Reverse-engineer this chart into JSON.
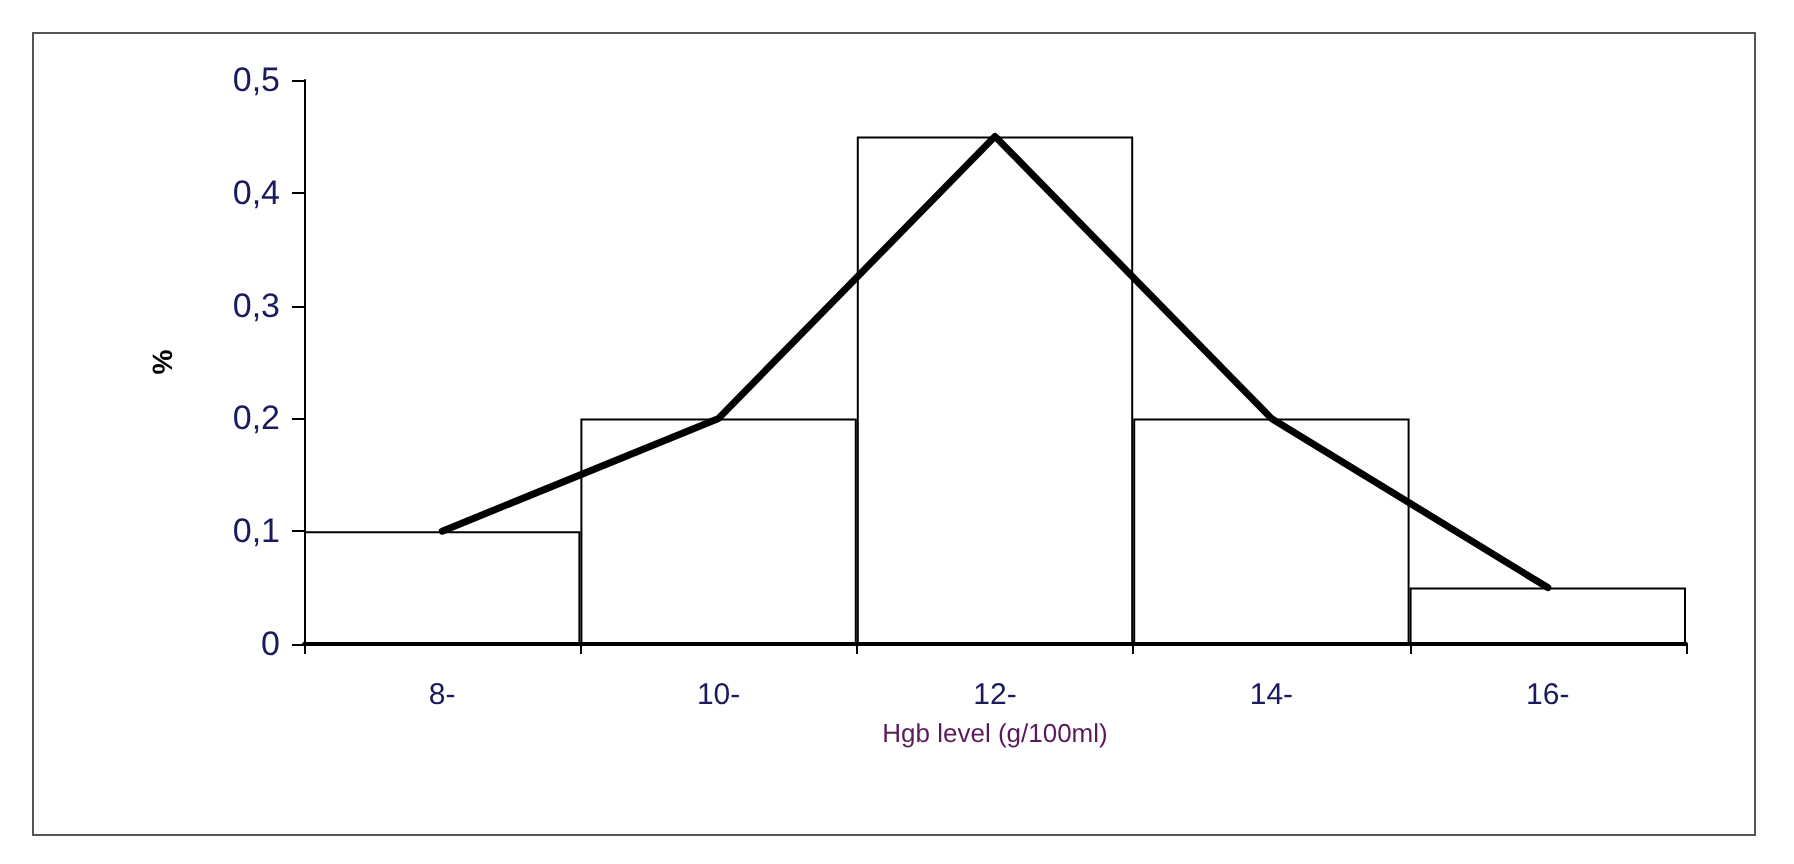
{
  "chart_data": {
    "type": "bar",
    "xlabel": "Hgb level (g/100ml)",
    "ylabel": "%",
    "categories": [
      "8-",
      "10-",
      "12-",
      "14-",
      "16-"
    ],
    "series": [
      {
        "color": "#ffffff",
        "values": [
          0.1,
          0.2,
          0.45,
          0.2,
          0.05
        ]
      },
      {
        "type": "line",
        "color": "#000000",
        "values": [
          0.1,
          0.2,
          0.45,
          0.2,
          0.05
        ]
      }
    ],
    "ylim": [
      0,
      0.5
    ],
    "yticks": [
      0,
      {
        "value": 0.1,
        "label": "0,1"
      },
      {
        "value": 0.2,
        "label": "0,2"
      },
      {
        "value": 0.3,
        "label": "0,3"
      },
      {
        "value": 0.4,
        "label": "0,4"
      },
      {
        "value": 0.5,
        "label": "0,5"
      }
    ],
    "grid": false,
    "marker": "none",
    "line_style": "solid"
  }
}
